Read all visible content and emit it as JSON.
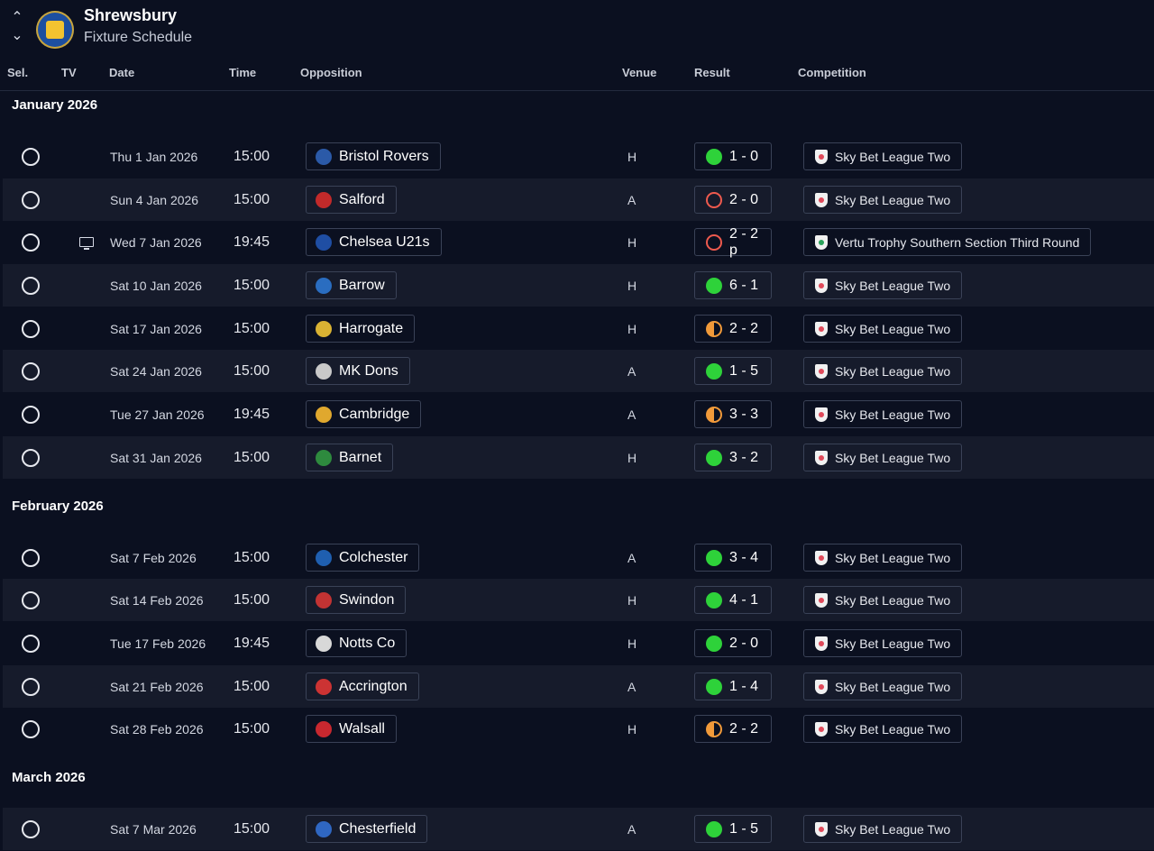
{
  "header": {
    "club": "Shrewsbury",
    "page_title": "Fixture Schedule",
    "crest_icon": "club-crest",
    "nav_up_icon": "chevron-up-icon",
    "nav_down_icon": "chevron-down-icon"
  },
  "columns": {
    "sel": "Sel.",
    "tv": "TV",
    "date": "Date",
    "time": "Time",
    "opposition": "Opposition",
    "venue": "Venue",
    "result": "Result",
    "competition": "Competition"
  },
  "months": [
    {
      "label": "January 2026"
    },
    {
      "label": "February 2026"
    },
    {
      "label": "March 2026"
    }
  ],
  "colors": {
    "win": "#2ed23a",
    "loss": "#ee5a4e",
    "draw": "#f19a3a",
    "background": "#0b1020"
  },
  "fixtures": [
    {
      "date": "Thu 1 Jan 2026",
      "time": "15:00",
      "opposition": "Bristol Rovers",
      "venue": "H",
      "outcome": "win",
      "result": "1 - 0",
      "competition": "Sky Bet League Two",
      "tv": false
    },
    {
      "date": "Sun 4 Jan 2026",
      "time": "15:00",
      "opposition": "Salford",
      "venue": "A",
      "outcome": "loss",
      "result": "2 - 0",
      "competition": "Sky Bet League Two",
      "tv": false
    },
    {
      "date": "Wed 7 Jan 2026",
      "time": "19:45",
      "opposition": "Chelsea U21s",
      "venue": "H",
      "outcome": "loss",
      "result": "2 - 2 p",
      "competition": "Vertu Trophy Southern Section Third Round",
      "tv": true
    },
    {
      "date": "Sat 10 Jan 2026",
      "time": "15:00",
      "opposition": "Barrow",
      "venue": "H",
      "outcome": "win",
      "result": "6 - 1",
      "competition": "Sky Bet League Two",
      "tv": false
    },
    {
      "date": "Sat 17 Jan 2026",
      "time": "15:00",
      "opposition": "Harrogate",
      "venue": "H",
      "outcome": "draw",
      "result": "2 - 2",
      "competition": "Sky Bet League Two",
      "tv": false
    },
    {
      "date": "Sat 24 Jan 2026",
      "time": "15:00",
      "opposition": "MK Dons",
      "venue": "A",
      "outcome": "win",
      "result": "1 - 5",
      "competition": "Sky Bet League Two",
      "tv": false
    },
    {
      "date": "Tue 27 Jan 2026",
      "time": "19:45",
      "opposition": "Cambridge",
      "venue": "A",
      "outcome": "draw",
      "result": "3 - 3",
      "competition": "Sky Bet League Two",
      "tv": false
    },
    {
      "date": "Sat 31 Jan 2026",
      "time": "15:00",
      "opposition": "Barnet",
      "venue": "H",
      "outcome": "win",
      "result": "3 - 2",
      "competition": "Sky Bet League Two",
      "tv": false
    },
    {
      "date": "Sat 7 Feb 2026",
      "time": "15:00",
      "opposition": "Colchester",
      "venue": "A",
      "outcome": "win",
      "result": "3 - 4",
      "competition": "Sky Bet League Two",
      "tv": false
    },
    {
      "date": "Sat 14 Feb 2026",
      "time": "15:00",
      "opposition": "Swindon",
      "venue": "H",
      "outcome": "win",
      "result": "4 - 1",
      "competition": "Sky Bet League Two",
      "tv": false
    },
    {
      "date": "Tue 17 Feb 2026",
      "time": "19:45",
      "opposition": "Notts Co",
      "venue": "H",
      "outcome": "win",
      "result": "2 - 0",
      "competition": "Sky Bet League Two",
      "tv": false
    },
    {
      "date": "Sat 21 Feb 2026",
      "time": "15:00",
      "opposition": "Accrington",
      "venue": "A",
      "outcome": "win",
      "result": "1 - 4",
      "competition": "Sky Bet League Two",
      "tv": false
    },
    {
      "date": "Sat 28 Feb 2026",
      "time": "15:00",
      "opposition": "Walsall",
      "venue": "H",
      "outcome": "draw",
      "result": "2 - 2",
      "competition": "Sky Bet League Two",
      "tv": false
    },
    {
      "date": "Sat 7 Mar 2026",
      "time": "15:00",
      "opposition": "Chesterfield",
      "venue": "A",
      "outcome": "win",
      "result": "1 - 5",
      "competition": "Sky Bet League Two",
      "tv": false
    }
  ]
}
